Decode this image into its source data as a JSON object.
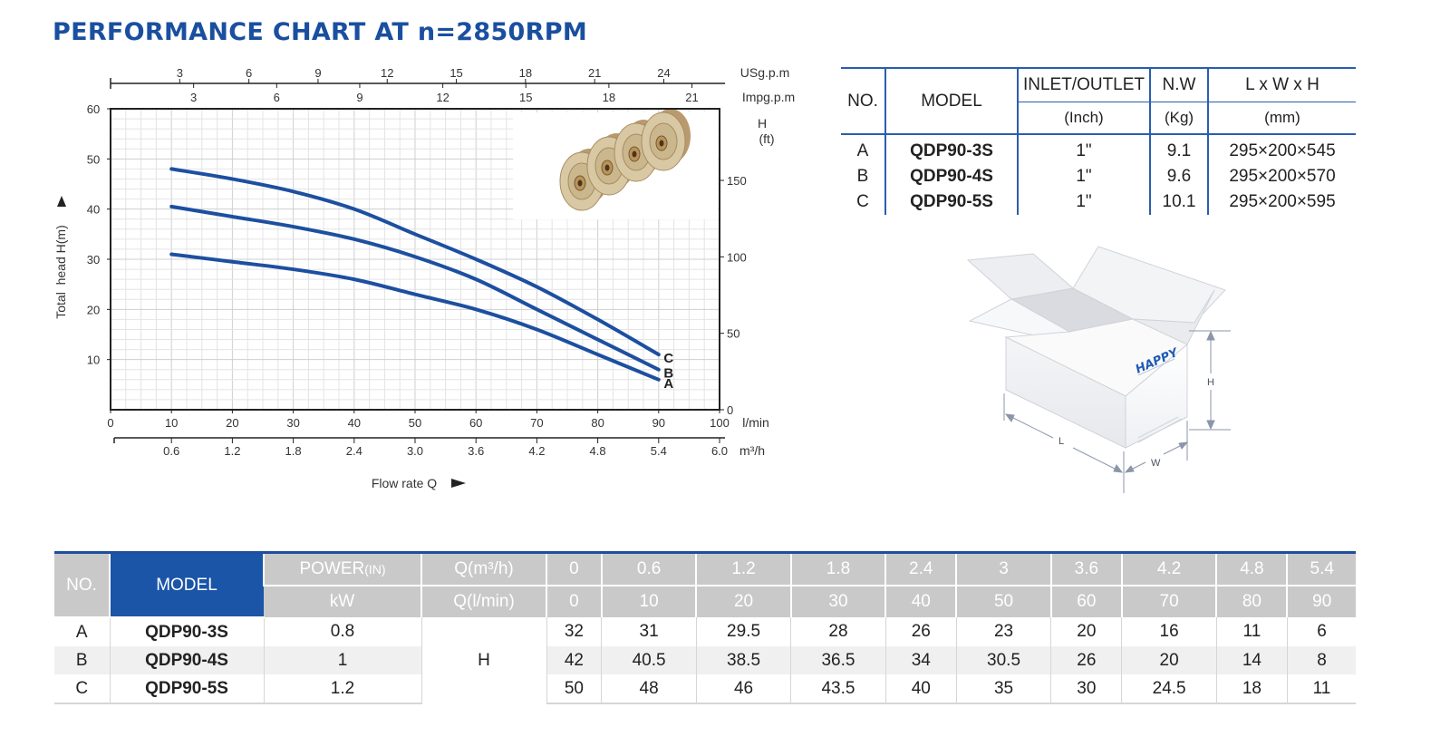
{
  "page_title": "PERFORMANCE CHART AT n=2850RPM",
  "chart_data": {
    "type": "line",
    "title": "",
    "xlabel": "Flow rate Q",
    "ylabel": "Total  head H(m)",
    "xlim": [
      0,
      100
    ],
    "ylim": [
      0,
      60
    ],
    "x_unit": "l/min",
    "grid": true,
    "x_ticks": [
      0,
      10,
      20,
      30,
      40,
      50,
      60,
      70,
      80,
      90,
      100
    ],
    "y_ticks": [
      10,
      20,
      30,
      40,
      50,
      60
    ],
    "x": [
      10,
      20,
      30,
      40,
      50,
      60,
      70,
      80,
      90
    ],
    "series": [
      {
        "name": "A",
        "values": [
          31,
          29.5,
          28,
          26,
          23,
          20,
          16,
          11,
          6
        ]
      },
      {
        "name": "B",
        "values": [
          40.5,
          38.5,
          36.5,
          34,
          30.5,
          26,
          20,
          14,
          8
        ]
      },
      {
        "name": "C",
        "values": [
          48,
          46,
          43.5,
          40,
          35,
          30,
          24.5,
          18,
          11
        ]
      }
    ],
    "secondary_axes": {
      "m3h": {
        "unit": "m³/h",
        "ticks": [
          "0.6",
          "1.2",
          "1.8",
          "2.4",
          "3.0",
          "3.6",
          "4.2",
          "4.8",
          "5.4",
          "6.0"
        ],
        "values": [
          0.6,
          1.2,
          1.8,
          2.4,
          3.0,
          3.6,
          4.2,
          4.8,
          5.4,
          6.0
        ]
      },
      "usgpm": {
        "unit": "USg.p.m",
        "ticks": [
          "3",
          "6",
          "9",
          "12",
          "15",
          "18",
          "21",
          "24"
        ],
        "values": [
          3,
          6,
          9,
          12,
          15,
          18,
          21,
          24
        ]
      },
      "impgpm": {
        "unit": "Impg.p.m",
        "ticks": [
          "3",
          "6",
          "9",
          "12",
          "15",
          "18",
          "21"
        ],
        "values": [
          3,
          6,
          9,
          12,
          15,
          18,
          21
        ]
      },
      "head_ft": {
        "unit_line1": "H",
        "unit_line2": "(ft)",
        "ticks": [
          "0",
          "50",
          "100",
          "150"
        ],
        "values": [
          0,
          50,
          100,
          150
        ]
      }
    },
    "series_line_color": "#1d4fa0"
  },
  "spec_table": {
    "headers": {
      "no": "NO.",
      "model": "MODEL",
      "inlet": "INLET/OUTLET",
      "inlet_unit": "(Inch)",
      "nw": "N.W",
      "nw_unit": "(Kg)",
      "dims": "L x W x H",
      "dims_unit": "(mm)"
    },
    "rows": [
      {
        "no": "A",
        "model": "QDP90-3S",
        "inlet": "1\"",
        "nw": "9.1",
        "dims": "295×200×545"
      },
      {
        "no": "B",
        "model": "QDP90-4S",
        "inlet": "1\"",
        "nw": "9.6",
        "dims": "295×200×570"
      },
      {
        "no": "C",
        "model": "QDP90-5S",
        "inlet": "1\"",
        "nw": "10.1",
        "dims": "295×200×595"
      }
    ]
  },
  "box": {
    "brand": "HAPPY",
    "label_l": "L",
    "label_w": "W",
    "label_h": "H"
  },
  "perf_table": {
    "headers": {
      "no": "NO.",
      "model": "MODEL",
      "power": "POWER",
      "power_sub": "(IN)",
      "power_unit": "kW",
      "q_m3h": "Q(m³/h)",
      "q_lmin": "Q(l/min)"
    },
    "q_m3h_values": [
      "0",
      "0.6",
      "1.2",
      "1.8",
      "2.4",
      "3",
      "3.6",
      "4.2",
      "4.8",
      "5.4"
    ],
    "q_lmin_values": [
      "0",
      "10",
      "20",
      "30",
      "40",
      "50",
      "60",
      "70",
      "80",
      "90"
    ],
    "h_label": "H",
    "rows": [
      {
        "no": "A",
        "model": "QDP90-3S",
        "power": "0.8",
        "heads": [
          "32",
          "31",
          "29.5",
          "28",
          "26",
          "23",
          "20",
          "16",
          "11",
          "6"
        ]
      },
      {
        "no": "B",
        "model": "QDP90-4S",
        "power": "1",
        "heads": [
          "42",
          "40.5",
          "38.5",
          "36.5",
          "34",
          "30.5",
          "26",
          "20",
          "14",
          "8"
        ]
      },
      {
        "no": "C",
        "model": "QDP90-5S",
        "power": "1.2",
        "heads": [
          "50",
          "48",
          "46",
          "43.5",
          "40",
          "35",
          "30",
          "24.5",
          "18",
          "11"
        ]
      }
    ]
  }
}
